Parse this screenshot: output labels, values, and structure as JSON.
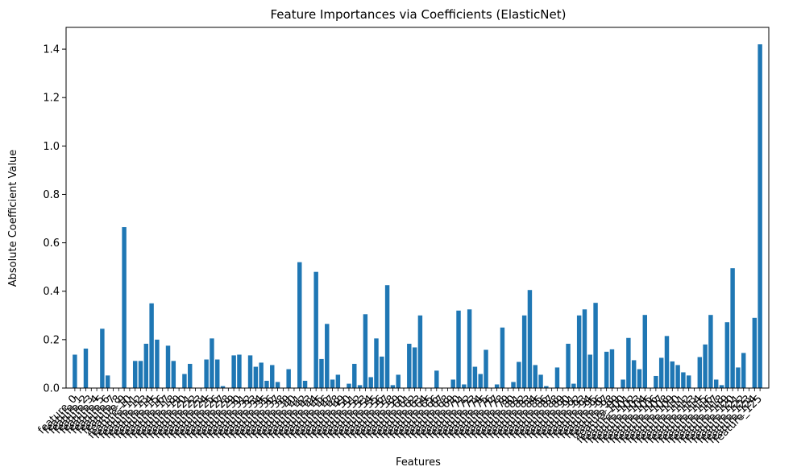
{
  "chart_data": {
    "type": "bar",
    "title": "Feature Importances via Coefficients (ElasticNet)",
    "xlabel": "Features",
    "ylabel": "Absolute Coefficient Value",
    "ylim": [
      0,
      1.49
    ],
    "yticks": [
      0.0,
      0.2,
      0.4,
      0.6,
      0.8,
      1.0,
      1.2,
      1.4
    ],
    "ytick_labels": [
      "0.0",
      "0.2",
      "0.4",
      "0.6",
      "0.8",
      "1.0",
      "1.2",
      "1.4"
    ],
    "bar_color": "#1f77b4",
    "grid": false,
    "legend": "none",
    "category_prefix": "feature_",
    "values": [
      0.138,
      0,
      0.163,
      0,
      0,
      0.245,
      0.052,
      0,
      0,
      0.665,
      0,
      0.112,
      0.112,
      0.183,
      0.35,
      0.2,
      0,
      0.175,
      0.112,
      0,
      0.058,
      0.1,
      0,
      0,
      0.118,
      0.205,
      0.118,
      0.008,
      0,
      0.135,
      0.138,
      0,
      0.135,
      0.088,
      0.105,
      0.03,
      0.095,
      0.025,
      0,
      0.078,
      0,
      0.52,
      0.03,
      0,
      0.48,
      0.12,
      0.265,
      0.035,
      0.055,
      0,
      0.018,
      0.1,
      0.012,
      0.305,
      0.045,
      0.205,
      0.13,
      0.425,
      0.012,
      0.055,
      0,
      0.183,
      0.168,
      0.3,
      0,
      0,
      0.072,
      0,
      0,
      0.035,
      0.32,
      0.015,
      0.325,
      0.088,
      0.058,
      0.158,
      0,
      0.015,
      0.25,
      0,
      0.025,
      0.108,
      0.3,
      0.405,
      0.095,
      0.055,
      0.008,
      0,
      0.085,
      0,
      0.183,
      0.018,
      0.3,
      0.325,
      0.138,
      0.352,
      0,
      0.15,
      0.16,
      0,
      0.035,
      0.207,
      0.115,
      0.078,
      0.302,
      0,
      0.05,
      0.125,
      0.215,
      0.11,
      0.095,
      0.065,
      0.052,
      0,
      0.128,
      0.18,
      0.302,
      0.035,
      0.012,
      0.272,
      0.495,
      0.085,
      0.145,
      0,
      0.29,
      1.42
    ]
  }
}
